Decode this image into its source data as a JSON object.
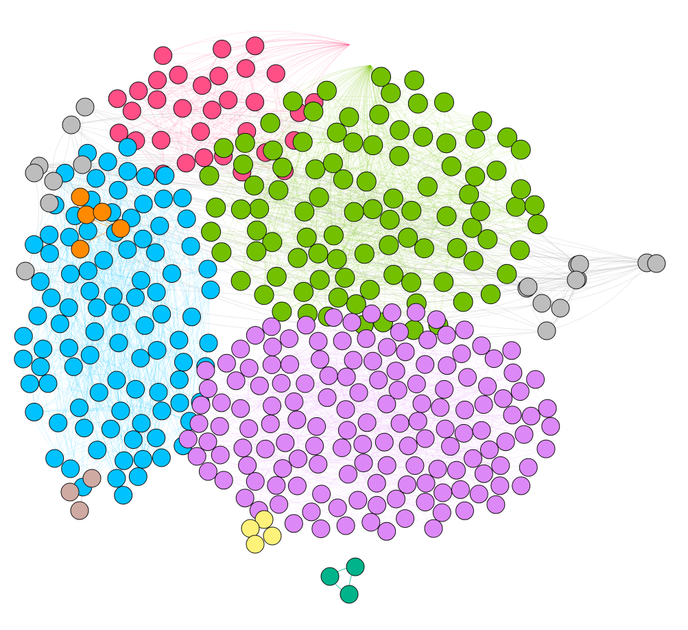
{
  "graph": {
    "type": "network",
    "background": "#ffffff",
    "clusters": [
      {
        "name": "pink",
        "color": "#ff4f86",
        "count": 32
      },
      {
        "name": "green",
        "color": "#73c000",
        "count": 98
      },
      {
        "name": "blue",
        "color": "#00c2ff",
        "count": 96
      },
      {
        "name": "violet",
        "color": "#dd88f7",
        "count": 150
      },
      {
        "name": "orange",
        "color": "#ff8a00",
        "count": 5
      },
      {
        "name": "gray",
        "color": "#bdbdbd",
        "count": 19
      },
      {
        "name": "tan",
        "color": "#cfaaa2",
        "count": 3
      },
      {
        "name": "yellow",
        "color": "#fff27a",
        "count": 4
      },
      {
        "name": "teal",
        "color": "#00b38a",
        "count": 3
      }
    ]
  }
}
